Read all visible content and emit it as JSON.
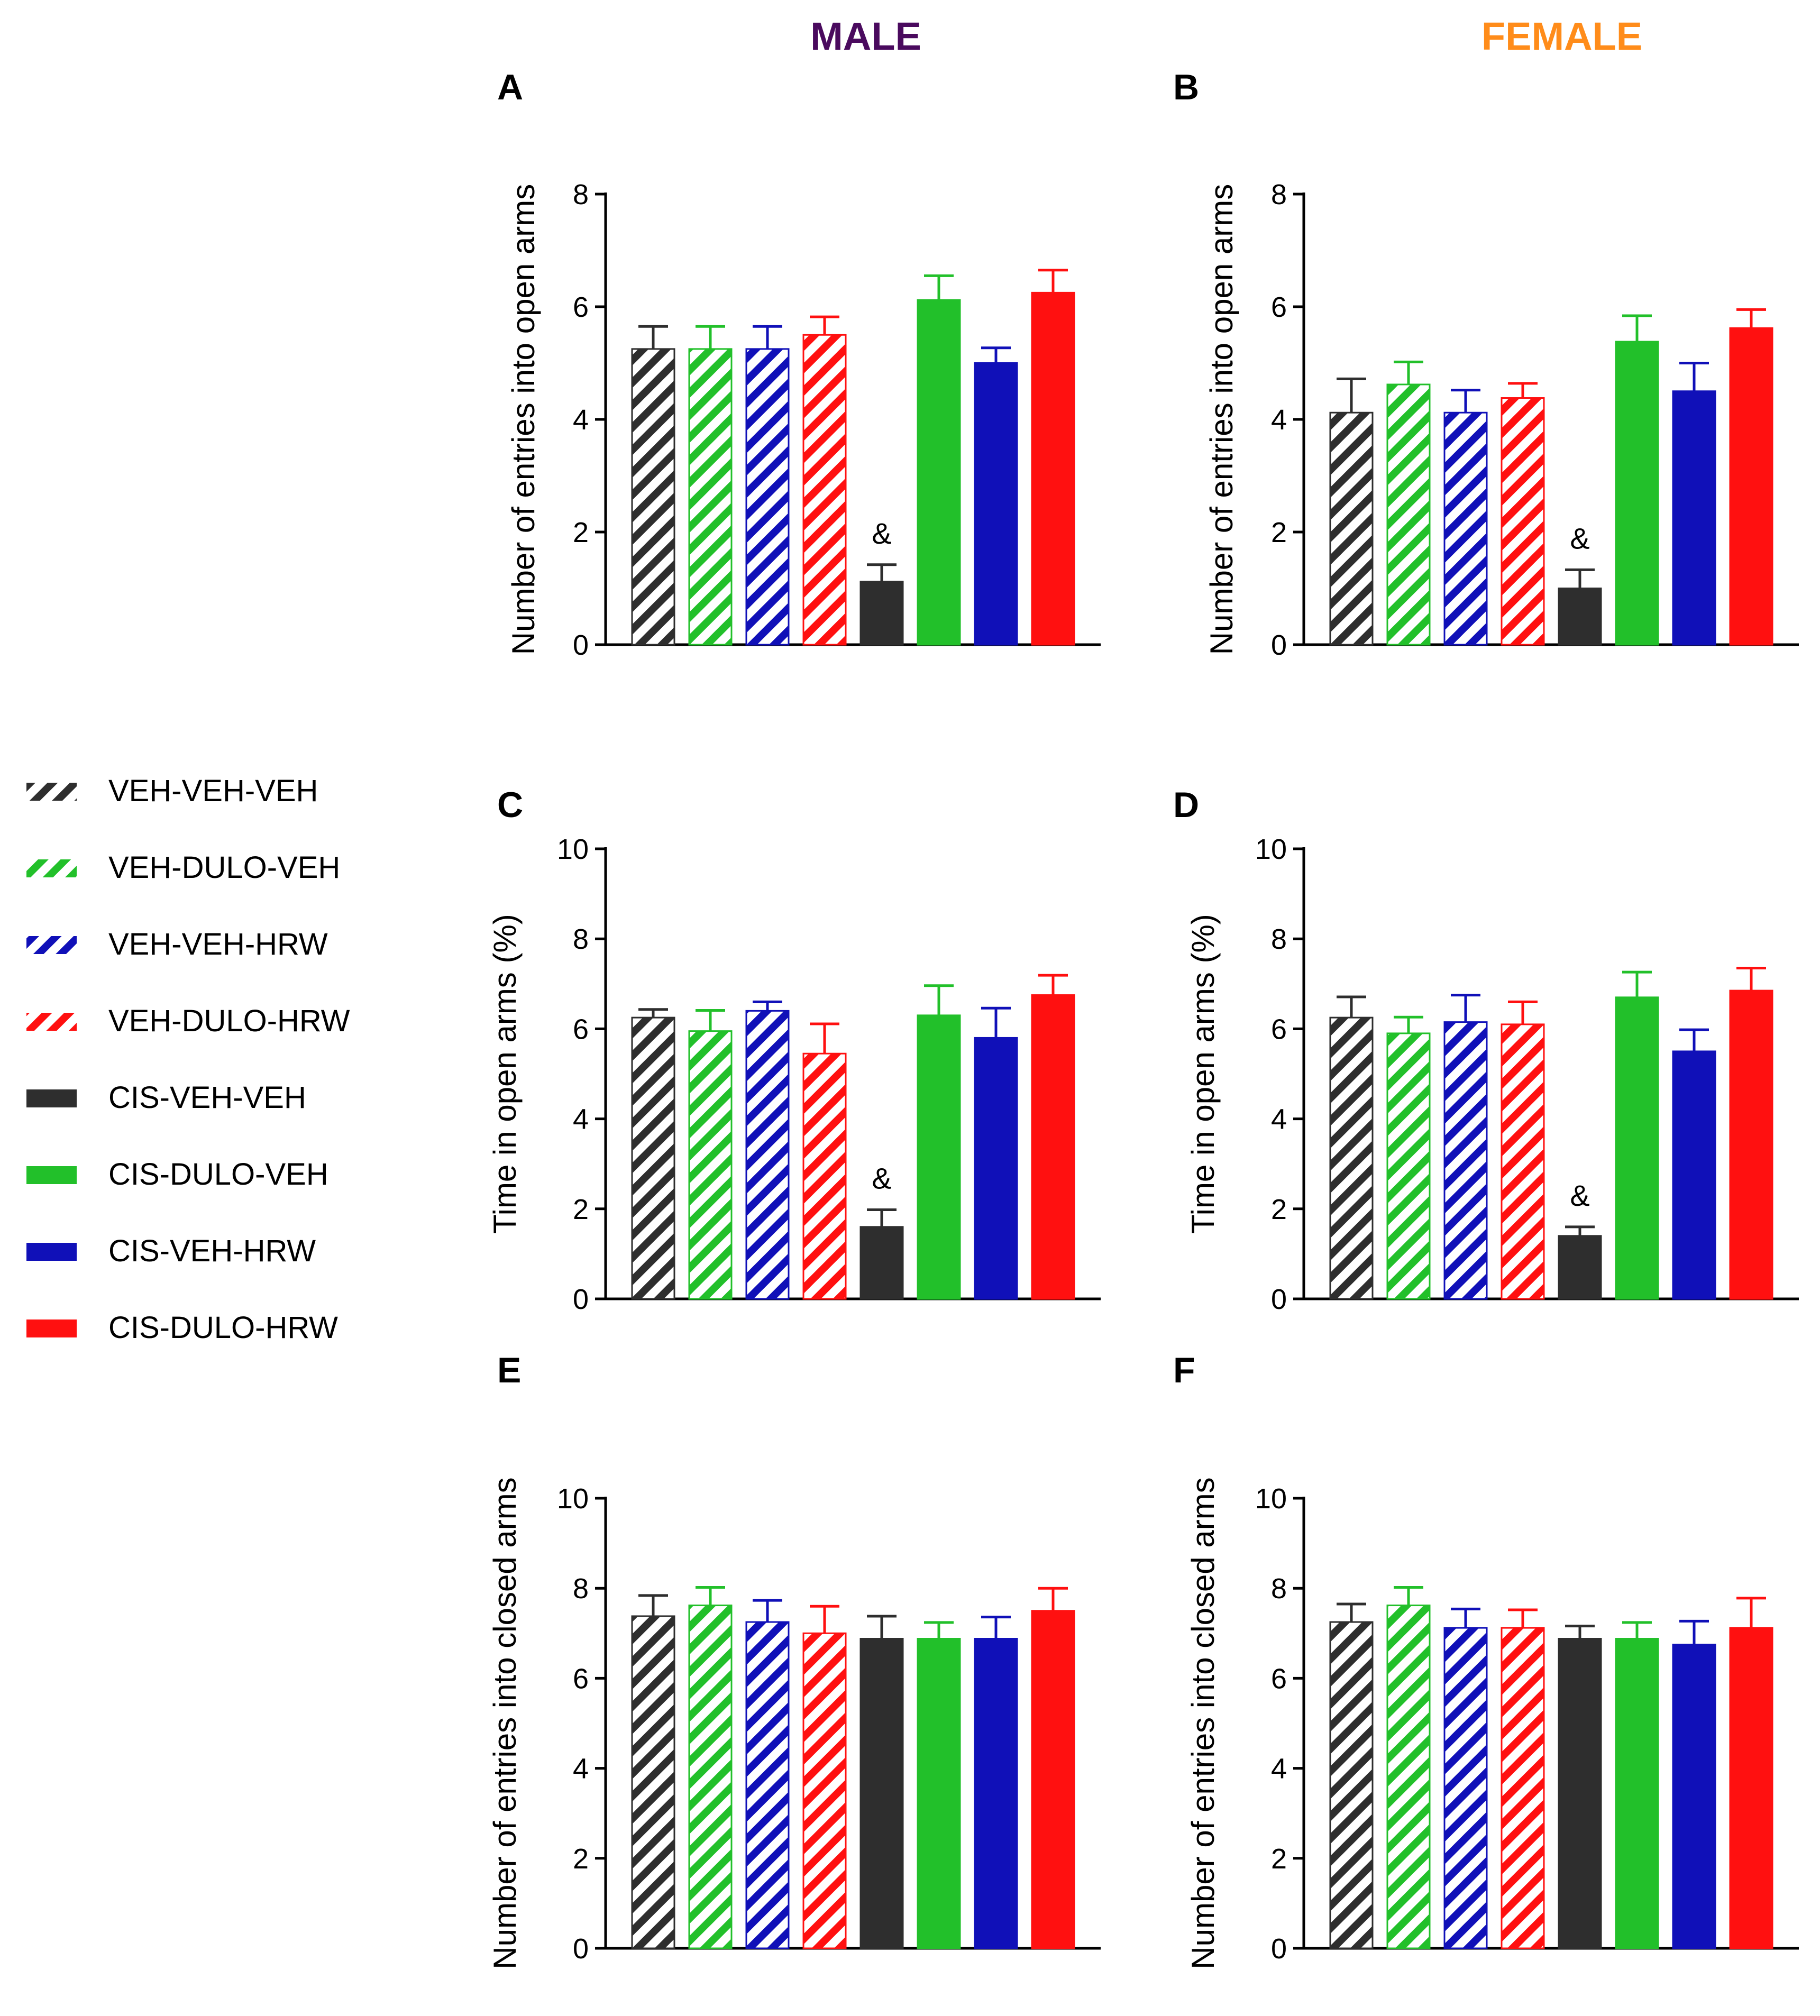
{
  "column_titles": {
    "male": {
      "text": "MALE",
      "color": "#4a0a5e"
    },
    "female": {
      "text": "FEMALE",
      "color": "#ff8c1a"
    }
  },
  "legend": [
    {
      "label": "VEH-VEH-VEH",
      "color": "#2e2e2e",
      "hatched": true
    },
    {
      "label": "VEH-DULO-VEH",
      "color": "#22c02a",
      "hatched": true
    },
    {
      "label": "VEH-VEH-HRW",
      "color": "#1010b8",
      "hatched": true
    },
    {
      "label": "VEH-DULO-HRW",
      "color": "#ff1010",
      "hatched": true
    },
    {
      "label": "CIS-VEH-VEH",
      "color": "#2e2e2e",
      "hatched": false
    },
    {
      "label": "CIS-DULO-VEH",
      "color": "#22c02a",
      "hatched": false
    },
    {
      "label": "CIS-VEH-HRW",
      "color": "#1010b8",
      "hatched": false
    },
    {
      "label": "CIS-DULO-HRW",
      "color": "#ff1010",
      "hatched": false
    }
  ],
  "chart_data": [
    {
      "panel": "A",
      "type": "bar",
      "ylabel": "Number of entries into open arms",
      "ylim": [
        0,
        8
      ],
      "yticks": [
        0,
        2,
        4,
        6,
        8
      ],
      "categories": [
        "VEH-VEH-VEH",
        "VEH-DULO-VEH",
        "VEH-VEH-HRW",
        "VEH-DULO-HRW",
        "CIS-VEH-VEH",
        "CIS-DULO-VEH",
        "CIS-VEH-HRW",
        "CIS-DULO-HRW"
      ],
      "values": [
        5.25,
        5.25,
        5.25,
        5.5,
        1.12,
        6.12,
        5.0,
        6.25
      ],
      "errors": [
        0.4,
        0.4,
        0.4,
        0.32,
        0.3,
        0.43,
        0.27,
        0.4
      ],
      "annotations": [
        {
          "index": 4,
          "text": "&"
        }
      ]
    },
    {
      "panel": "B",
      "type": "bar",
      "ylabel": "Number of entries into open arms",
      "ylim": [
        0,
        8
      ],
      "yticks": [
        0,
        2,
        4,
        6,
        8
      ],
      "categories": [
        "VEH-VEH-VEH",
        "VEH-DULO-VEH",
        "VEH-VEH-HRW",
        "VEH-DULO-HRW",
        "CIS-VEH-VEH",
        "CIS-DULO-VEH",
        "CIS-VEH-HRW",
        "CIS-DULO-HRW"
      ],
      "values": [
        4.12,
        4.62,
        4.12,
        4.38,
        1.0,
        5.38,
        4.5,
        5.62
      ],
      "errors": [
        0.6,
        0.4,
        0.4,
        0.26,
        0.33,
        0.46,
        0.5,
        0.33
      ],
      "annotations": [
        {
          "index": 4,
          "text": "&"
        }
      ]
    },
    {
      "panel": "C",
      "type": "bar",
      "ylabel": "Time in open arms (%)",
      "ylim": [
        0,
        10
      ],
      "yticks": [
        0,
        2,
        4,
        6,
        8,
        10
      ],
      "categories": [
        "VEH-VEH-VEH",
        "VEH-DULO-VEH",
        "VEH-VEH-HRW",
        "VEH-DULO-HRW",
        "CIS-VEH-VEH",
        "CIS-DULO-VEH",
        "CIS-VEH-HRW",
        "CIS-DULO-HRW"
      ],
      "values": [
        6.25,
        5.95,
        6.4,
        5.45,
        1.6,
        6.3,
        5.8,
        6.75
      ],
      "errors": [
        0.18,
        0.46,
        0.2,
        0.66,
        0.38,
        0.66,
        0.66,
        0.44
      ],
      "annotations": [
        {
          "index": 4,
          "text": "&"
        }
      ]
    },
    {
      "panel": "D",
      "type": "bar",
      "ylabel": "Time in open arms (%)",
      "ylim": [
        0,
        10
      ],
      "yticks": [
        0,
        2,
        4,
        6,
        8,
        10
      ],
      "categories": [
        "VEH-VEH-VEH",
        "VEH-DULO-VEH",
        "VEH-VEH-HRW",
        "VEH-DULO-HRW",
        "CIS-VEH-VEH",
        "CIS-DULO-VEH",
        "CIS-VEH-HRW",
        "CIS-DULO-HRW"
      ],
      "values": [
        6.25,
        5.9,
        6.15,
        6.1,
        1.4,
        6.7,
        5.5,
        6.85
      ],
      "errors": [
        0.46,
        0.36,
        0.6,
        0.5,
        0.2,
        0.56,
        0.48,
        0.5
      ],
      "annotations": [
        {
          "index": 4,
          "text": "&"
        }
      ]
    },
    {
      "panel": "E",
      "type": "bar",
      "ylabel": "Number of entries into closed arms",
      "ylim": [
        0,
        10
      ],
      "yticks": [
        0,
        2,
        4,
        6,
        8,
        10
      ],
      "categories": [
        "VEH-VEH-VEH",
        "VEH-DULO-VEH",
        "VEH-VEH-HRW",
        "VEH-DULO-HRW",
        "CIS-VEH-VEH",
        "CIS-DULO-VEH",
        "CIS-VEH-HRW",
        "CIS-DULO-HRW"
      ],
      "values": [
        7.38,
        7.62,
        7.25,
        7.0,
        6.88,
        6.88,
        6.88,
        7.5
      ],
      "errors": [
        0.46,
        0.4,
        0.48,
        0.6,
        0.5,
        0.36,
        0.48,
        0.5
      ],
      "annotations": []
    },
    {
      "panel": "F",
      "type": "bar",
      "ylabel": "Number of entries into closed arms",
      "ylim": [
        0,
        10
      ],
      "yticks": [
        0,
        2,
        4,
        6,
        8,
        10
      ],
      "categories": [
        "VEH-VEH-VEH",
        "VEH-DULO-VEH",
        "VEH-VEH-HRW",
        "VEH-DULO-HRW",
        "CIS-VEH-VEH",
        "CIS-DULO-VEH",
        "CIS-VEH-HRW",
        "CIS-DULO-HRW"
      ],
      "values": [
        7.25,
        7.62,
        7.12,
        7.12,
        6.88,
        6.88,
        6.75,
        7.12
      ],
      "errors": [
        0.4,
        0.4,
        0.42,
        0.4,
        0.28,
        0.36,
        0.52,
        0.66
      ],
      "annotations": []
    }
  ]
}
